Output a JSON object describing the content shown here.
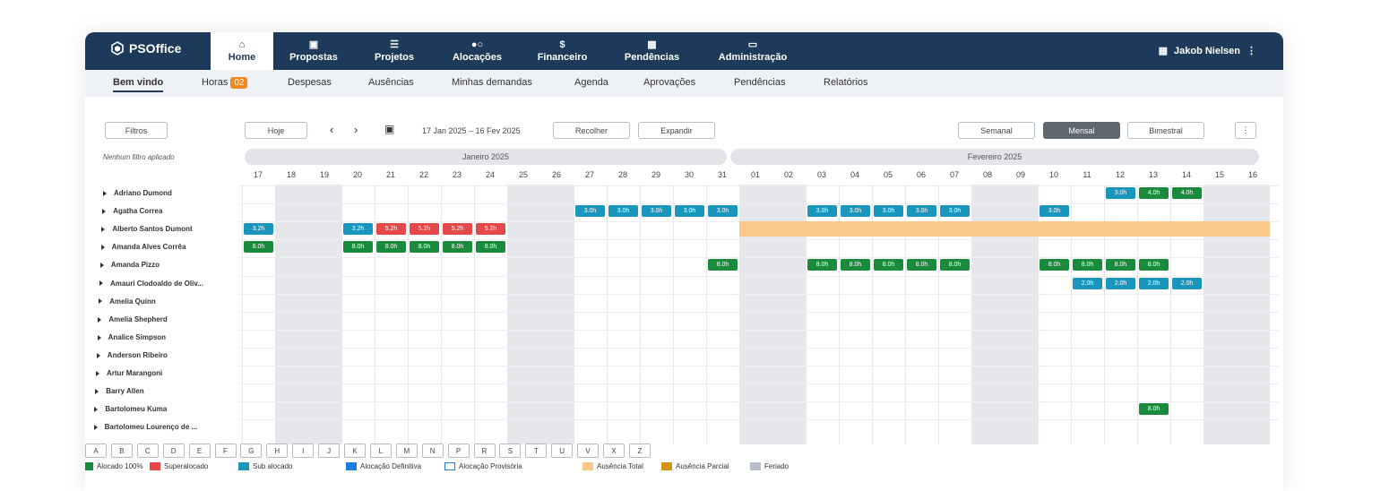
{
  "app": {
    "name": "PSOffice"
  },
  "nav": {
    "items": [
      {
        "label": "Home",
        "icon": "home-icon"
      },
      {
        "label": "Propostas",
        "icon": "briefcase-icon"
      },
      {
        "label": "Projetos",
        "icon": "menu-icon"
      },
      {
        "label": "Alocações",
        "icon": "users-icon"
      },
      {
        "label": "Financeiro",
        "icon": "dollar-icon"
      },
      {
        "label": "Pendências",
        "icon": "calendar-icon"
      },
      {
        "label": "Administração",
        "icon": "toolbox-icon"
      }
    ],
    "user": "Jakob Nielsen"
  },
  "subnav": {
    "items": [
      "Bem vindo",
      "Horas",
      "Despesas",
      "Ausências",
      "Minhas demandas",
      "Agenda",
      "Aprovações",
      "Pendências",
      "Relatórios"
    ],
    "hours_badge": "02"
  },
  "toolbar": {
    "filters": "Filtros",
    "no_filter": "Nenhum filtro aplicado",
    "today": "Hoje",
    "range": "17 Jan 2025 – 16 Fev 2025",
    "collapse": "Recolher",
    "expand": "Expandir",
    "weekly": "Semanal",
    "monthly": "Mensal",
    "bimonthly": "Bimestral"
  },
  "months": [
    "Janeiro 2025",
    "Fevereiro 2025"
  ],
  "days": [
    "17",
    "18",
    "19",
    "20",
    "21",
    "22",
    "23",
    "24",
    "25",
    "26",
    "27",
    "28",
    "29",
    "30",
    "31",
    "01",
    "02",
    "03",
    "04",
    "05",
    "06",
    "07",
    "08",
    "09",
    "10",
    "11",
    "12",
    "13",
    "14",
    "15",
    "16"
  ],
  "weekend_cols": [
    1,
    2,
    8,
    9,
    15,
    16,
    22,
    23,
    29,
    30
  ],
  "people": [
    "Adriano Dumond",
    "Agatha Correa",
    "Alberto Santos Dumont",
    "Amanda Alves Corrêa",
    "Amanda Pizzo",
    "Amauri Clodoaldo de Oliv...",
    "Amelia Quinn",
    "Amelia Shepherd",
    "Analice Simpson",
    "Anderson Ribeiro",
    "Artur Marangoni",
    "Barry Allen",
    "Bartolomeu Kuma",
    "Bartolomeu Lourenço de ..."
  ],
  "allocations": [
    {
      "row": 0,
      "day": "12",
      "label": "3.0h",
      "color": "blue"
    },
    {
      "row": 0,
      "day": "13",
      "label": "4.0h",
      "color": "green"
    },
    {
      "row": 0,
      "day": "14",
      "label": "4.0h",
      "color": "green"
    },
    {
      "row": 1,
      "day": "27",
      "label": "3.0h",
      "color": "blue"
    },
    {
      "row": 1,
      "day": "28",
      "label": "3.0h",
      "color": "blue"
    },
    {
      "row": 1,
      "day": "29",
      "label": "3.0h",
      "color": "blue"
    },
    {
      "row": 1,
      "day": "30",
      "label": "3.0h",
      "color": "blue"
    },
    {
      "row": 1,
      "day": "31",
      "label": "3.0h",
      "color": "blue"
    },
    {
      "row": 1,
      "day": "03",
      "label": "3.0h",
      "color": "blue"
    },
    {
      "row": 1,
      "day": "04",
      "label": "3.0h",
      "color": "blue"
    },
    {
      "row": 1,
      "day": "05",
      "label": "3.0h",
      "color": "blue"
    },
    {
      "row": 1,
      "day": "06",
      "label": "3.0h",
      "color": "blue"
    },
    {
      "row": 1,
      "day": "07",
      "label": "3.0h",
      "color": "blue"
    },
    {
      "row": 1,
      "day": "10",
      "label": "3.0h",
      "color": "blue"
    },
    {
      "row": 2,
      "day": "17",
      "label": "3.2h",
      "color": "blue"
    },
    {
      "row": 2,
      "day": "20",
      "label": "3.2h",
      "color": "blue"
    },
    {
      "row": 2,
      "day": "21",
      "label": "5.2h",
      "color": "red"
    },
    {
      "row": 2,
      "day": "22",
      "label": "5.2h",
      "color": "red"
    },
    {
      "row": 2,
      "day": "23",
      "label": "5.2h",
      "color": "red"
    },
    {
      "row": 2,
      "day": "24",
      "label": "5.2h",
      "color": "red"
    },
    {
      "row": 3,
      "day": "17",
      "label": "8.0h",
      "color": "green"
    },
    {
      "row": 3,
      "day": "20",
      "label": "8.0h",
      "color": "green"
    },
    {
      "row": 3,
      "day": "21",
      "label": "8.0h",
      "color": "green"
    },
    {
      "row": 3,
      "day": "22",
      "label": "8.0h",
      "color": "green"
    },
    {
      "row": 3,
      "day": "23",
      "label": "8.0h",
      "color": "green"
    },
    {
      "row": 3,
      "day": "24",
      "label": "8.0h",
      "color": "green"
    },
    {
      "row": 4,
      "day": "31",
      "label": "8.0h",
      "color": "green"
    },
    {
      "row": 4,
      "day": "03",
      "label": "8.0h",
      "color": "green"
    },
    {
      "row": 4,
      "day": "04",
      "label": "8.0h",
      "color": "green"
    },
    {
      "row": 4,
      "day": "05",
      "label": "8.0h",
      "color": "green"
    },
    {
      "row": 4,
      "day": "06",
      "label": "8.0h",
      "color": "green"
    },
    {
      "row": 4,
      "day": "07",
      "label": "8.0h",
      "color": "green"
    },
    {
      "row": 4,
      "day": "10",
      "label": "8.0h",
      "color": "green"
    },
    {
      "row": 4,
      "day": "11",
      "label": "8.0h",
      "color": "green"
    },
    {
      "row": 4,
      "day": "12",
      "label": "8.0h",
      "color": "green"
    },
    {
      "row": 4,
      "day": "13",
      "label": "8.0h",
      "color": "green"
    },
    {
      "row": 5,
      "day": "11",
      "label": "2.0h",
      "color": "blue"
    },
    {
      "row": 5,
      "day": "12",
      "label": "2.0h",
      "color": "blue"
    },
    {
      "row": 5,
      "day": "13",
      "label": "2.0h",
      "color": "blue"
    },
    {
      "row": 5,
      "day": "14",
      "label": "2.0h",
      "color": "blue"
    },
    {
      "row": 12,
      "day": "13",
      "label": "8.0h",
      "color": "green"
    }
  ],
  "absence": {
    "row": 2,
    "from": "01",
    "to": "16"
  },
  "letters": [
    "A",
    "B",
    "C",
    "D",
    "E",
    "F",
    "G",
    "H",
    "I",
    "J",
    "K",
    "L",
    "M",
    "N",
    "P",
    "R",
    "S",
    "T",
    "U",
    "V",
    "X",
    "Z"
  ],
  "legend": [
    {
      "label": "Alocado 100%",
      "color": "#1a8a3c",
      "style": "fill"
    },
    {
      "label": "Superalocado",
      "color": "#e44848",
      "style": "fill"
    },
    {
      "label": "Sub alocado",
      "color": "#1a96bd",
      "style": "fill"
    },
    {
      "label": "Alocação Definitiva",
      "color": "#1a7be0",
      "style": "fill"
    },
    {
      "label": "Alocação Provisória",
      "color": "#1a7be0",
      "style": "outline"
    },
    {
      "label": "Ausência Total",
      "color": "#fbc98a",
      "style": "fill"
    },
    {
      "label": "Ausência Parcial",
      "color": "#d59418",
      "style": "fill"
    },
    {
      "label": "Feriado",
      "color": "#b7bfcd",
      "style": "fill"
    }
  ],
  "colors": {
    "nav": "#1e3a5a",
    "weekend": "#e6e7eb"
  }
}
